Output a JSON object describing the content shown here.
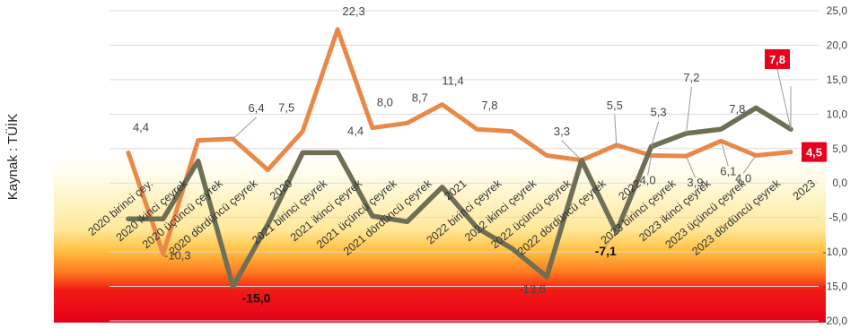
{
  "source": "Kaynak : TÜİK",
  "chart_data": {
    "type": "line",
    "ylim": [
      -20,
      25
    ],
    "y_ticks": [
      "25,0",
      "20,0",
      "15,0",
      "10,0",
      "5,0",
      "0,0",
      "-5,0",
      "-10,0",
      "-15,0",
      "-20,0"
    ],
    "categories": [
      "2020 birinci çeyrek",
      "2020 ikinci çeyrek",
      "2020 üçüncü çeyrek",
      "2020 dördüncü çeyrek",
      "2020",
      "2021 birinci çeyrek",
      "2021 ikinci çeyrek",
      "2021 üçüncü çeyrek",
      "2021 dördüncü çeyrek",
      "2021",
      "2022 birinci çeyrek",
      "2022 ikinci çeyrek",
      "2022 üçüncü çeyrek",
      "2022 dördüncü çeyrek",
      "2022",
      "2023 birinci çeyrek",
      "2023 ikinci çeyrek",
      "2023 üçüncü çeyrek",
      "2023 dördüncü çeyrek",
      "2023"
    ],
    "category_labels": [
      "2020 birinci çey.",
      "2020 ikinci çeyrek",
      "2020 üçüncü çeyrek",
      "2020 dördüncü çeyrek",
      "2020",
      "2021 birinci çeyrek",
      "2021 ikinci çeyrek",
      "2021 üçüncü çeyrek",
      "2021 dördüncü çeyrek",
      "2021",
      "2022 birinci çeyrek",
      "2022 ikinci çeyrek",
      "2022 üçüncü çeyrek",
      "2022 dördüncü çeyrek",
      "2022",
      "2023 birinci çeyrek",
      "2023 ikinci çeyrek",
      "2023 üçüncü çeyrek",
      "2023 dördüncü çeyrek",
      "2023"
    ],
    "series": [
      {
        "color": "#e8894a",
        "values": [
          4.4,
          -10.3,
          6.2,
          6.4,
          1.9,
          7.5,
          22.3,
          8.0,
          8.7,
          11.4,
          7.8,
          7.5,
          4.0,
          3.3,
          5.5,
          4.0,
          3.9,
          6.1,
          4.0,
          4.5
        ],
        "labels": [
          "4,4",
          "-10,3",
          "",
          "6,4",
          "",
          "7,5",
          "22,3",
          "8,0",
          "8,7",
          "11,4",
          "7,8",
          "",
          "",
          "3,3",
          "5,5",
          "4,0",
          "3,9",
          "6,1",
          "4,0",
          "4,5"
        ]
      },
      {
        "color": "#6e6f55",
        "values": [
          -5.2,
          -5.2,
          3.2,
          -15.0,
          -6.0,
          4.4,
          4.4,
          -4.8,
          -5.6,
          -0.6,
          -6.5,
          -9.5,
          -13.6,
          3.3,
          -7.1,
          5.3,
          7.2,
          7.8,
          10.9,
          7.8
        ],
        "labels": [
          "",
          "",
          "",
          "-15,0",
          "",
          "",
          "4,4",
          "",
          "",
          "",
          "",
          "",
          "-13,6",
          "",
          "-7,1",
          "5,3",
          "7,2",
          "7,8",
          "",
          "7,8"
        ]
      }
    ],
    "highlight_labels": [
      "7,8",
      "4,5"
    ],
    "highlight_color": "#e8001c",
    "background_bands": [
      "#e8001c",
      "#ff5a1e",
      "#ffd24a",
      "#fff6cc"
    ]
  }
}
